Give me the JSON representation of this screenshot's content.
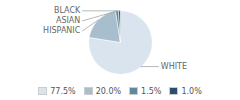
{
  "chart_data": {
    "type": "pie",
    "categories": [
      "WHITE",
      "HISPANIC",
      "ASIAN",
      "BLACK"
    ],
    "values": [
      77.5,
      20.0,
      1.5,
      1.0
    ],
    "value_labels": [
      "77.5%",
      "20.0%",
      "1.5%",
      "1.0%"
    ],
    "colors": [
      "#d9e4ef",
      "#a8becc",
      "#5d8aa0",
      "#2e4d6b"
    ],
    "legend": "bottom"
  }
}
